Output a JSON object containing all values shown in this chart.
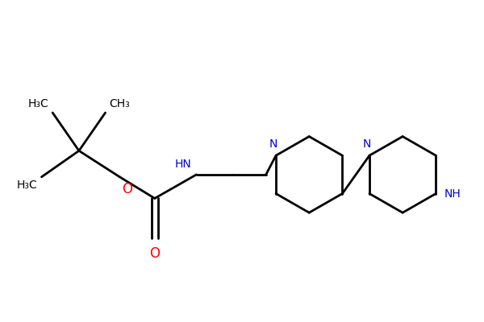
{
  "bg_color": "#ffffff",
  "bond_color": "#000000",
  "n_color": "#0000cc",
  "o_color": "#ff0000",
  "line_width": 2.0,
  "figsize": [
    6.0,
    4.0
  ],
  "dpi": 100,
  "xlim": [
    0,
    10
  ],
  "ylim": [
    0,
    6.67
  ],
  "font_size": 10,
  "font_size_sub": 8
}
